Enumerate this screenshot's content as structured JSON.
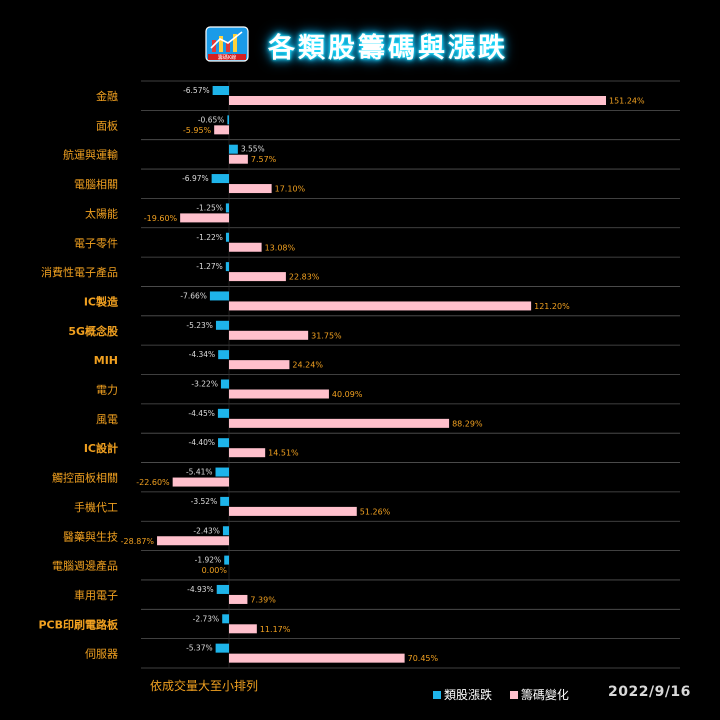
{
  "header": {
    "title": "各類股籌碼與漲跌",
    "logo_text": "籌碼K線"
  },
  "footer": {
    "note": "依成交量大至小排列",
    "date": "2022/9/16"
  },
  "colors": {
    "background": "#000000",
    "series1": "#1eb4ea",
    "series2": "#ffc0cc",
    "category_label": "#f0a020",
    "value_label_1": "#dddddd",
    "value_label_2": "#f0a020",
    "separator": "#555555"
  },
  "chart_data": {
    "type": "bar",
    "orientation": "horizontal",
    "categories": [
      "金融",
      "面板",
      "航運與運輸",
      "電腦相關",
      "太陽能",
      "電子零件",
      "消費性電子產品",
      "IC製造",
      "5G概念股",
      "MIH",
      "電力",
      "風電",
      "IC設計",
      "觸控面板相關",
      "手機代工",
      "醫藥與生技",
      "電腦週邊產品",
      "車用電子",
      "PCB印刷電路板",
      "伺服器"
    ],
    "series": [
      {
        "name": "類股漲跌",
        "values": [
          -6.57,
          -0.65,
          3.55,
          -6.97,
          -1.25,
          -1.22,
          -1.27,
          -7.66,
          -5.23,
          -4.34,
          -3.22,
          -4.45,
          -4.4,
          -5.41,
          -3.52,
          -2.43,
          -1.92,
          -4.93,
          -2.73,
          -5.37
        ],
        "labels": [
          "-6.57%",
          "-0.65%",
          "3.55%",
          "-6.97%",
          "-1.25%",
          "-1.22%",
          "-1.27%",
          "-7.66%",
          "-5.23%",
          "-4.34%",
          "-3.22%",
          "-4.45%",
          "-4.40%",
          "-5.41%",
          "-3.52%",
          "-2.43%",
          "-1.92%",
          "-4.93%",
          "-2.73%",
          "-5.37%"
        ]
      },
      {
        "name": "籌碼變化",
        "values": [
          151.24,
          -5.95,
          7.57,
          17.1,
          -19.6,
          13.08,
          22.83,
          121.2,
          31.75,
          24.24,
          40.09,
          88.29,
          14.51,
          -22.6,
          51.26,
          -28.87,
          0.0,
          7.39,
          11.17,
          70.45
        ],
        "labels": [
          "151.24%",
          "-5.95%",
          "7.57%",
          "17.10%",
          "-19.60%",
          "13.08%",
          "22.83%",
          "121.20%",
          "31.75%",
          "24.24%",
          "40.09%",
          "88.29%",
          "14.51%",
          "-22.60%",
          "51.26%",
          "-28.87%",
          "0.00%",
          "7.39%",
          "11.17%",
          "70.45%"
        ]
      }
    ],
    "xlim": [
      -30,
      155
    ],
    "grid": false,
    "legend": "bottom-right"
  }
}
